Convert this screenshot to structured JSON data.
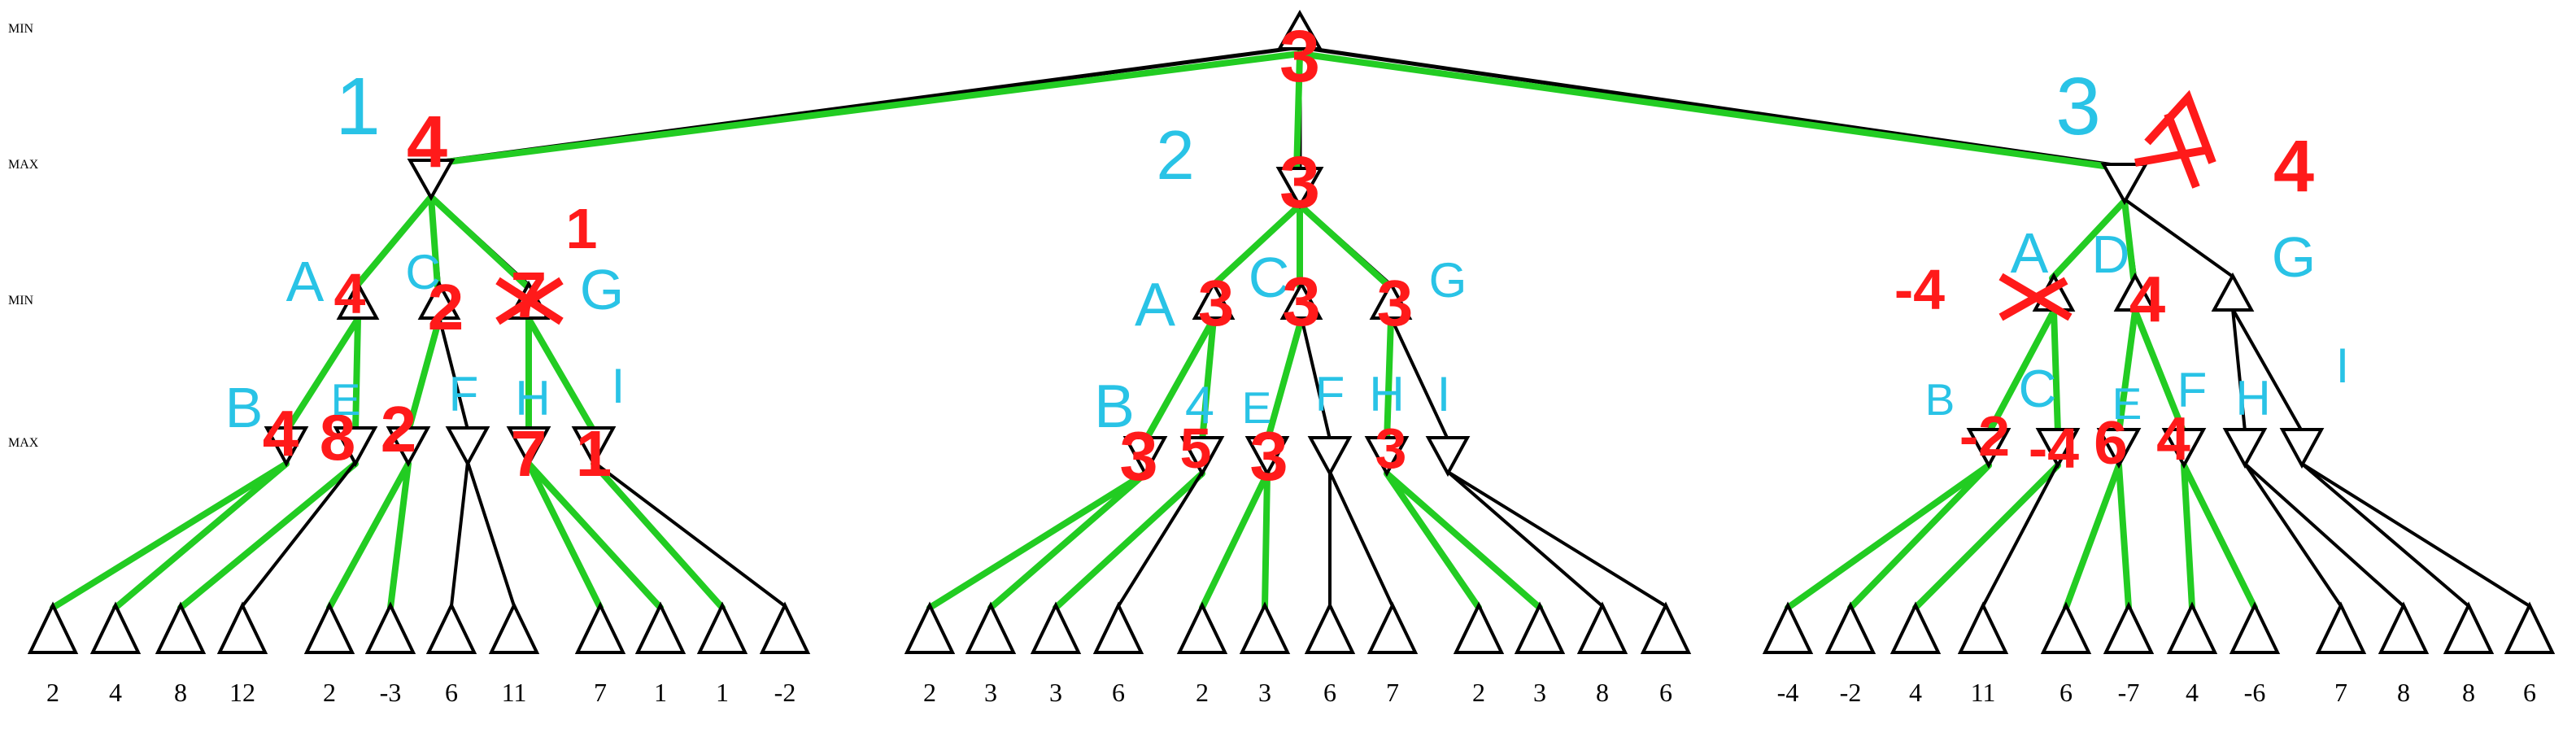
{
  "level_labels": [
    "MIN",
    "MAX",
    "MIN",
    "MAX"
  ],
  "leaf_values": [
    "2",
    "4",
    "8",
    "12",
    "2",
    "-3",
    "6",
    "11",
    "7",
    "1",
    "1",
    "-2",
    "2",
    "3",
    "3",
    "6",
    "2",
    "3",
    "6",
    "7",
    "2",
    "3",
    "8",
    "6",
    "-4",
    "-2",
    "4",
    "11",
    "6",
    "-7",
    "4",
    "-6",
    "7",
    "8",
    "8",
    "6"
  ],
  "annotations": {
    "root_value": "3",
    "subtree_labels": [
      "1",
      "2",
      "3"
    ],
    "max_values": [
      "4",
      "3",
      "4"
    ],
    "left_min_values": [
      "4",
      "2",
      "7"
    ],
    "left_min_letters": [
      "A",
      "C",
      "G"
    ],
    "left_max_values": [
      "4",
      "8",
      "2",
      "7",
      "1"
    ],
    "left_max_letters": [
      "B",
      "E",
      "F",
      "H",
      "I"
    ],
    "mid_min_values": [
      "3",
      "3",
      "3"
    ],
    "mid_min_letters": [
      "A",
      "C",
      "G"
    ],
    "mid_max_values": [
      "3",
      "5",
      "3",
      "3"
    ],
    "mid_max_letters": [
      "B",
      "4",
      "E",
      "F",
      "H",
      "I"
    ],
    "right_min_values": [
      "-4",
      "4"
    ],
    "right_min_letters": [
      "A",
      "D",
      "G"
    ],
    "right_max_values": [
      "-2",
      "-4",
      "6",
      "4"
    ],
    "right_max_letters": [
      "B",
      "C",
      "E",
      "F",
      "H",
      "I"
    ]
  },
  "colors": {
    "edge_pruned": "#000000",
    "edge_explored": "#22cc22",
    "value_annotation": "#ff1a1a",
    "label_annotation": "#29c3e6"
  }
}
